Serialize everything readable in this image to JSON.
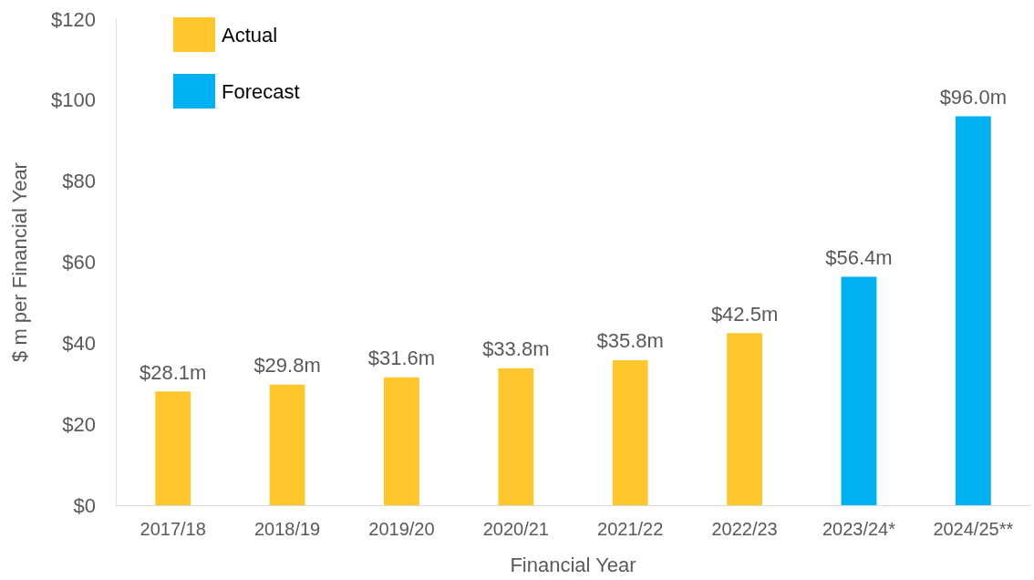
{
  "chart_data": {
    "type": "bar",
    "xlabel": "Financial Year",
    "ylabel": "$ m per Financial Year",
    "categories": [
      "2017/18",
      "2018/19",
      "2019/20",
      "2020/21",
      "2021/22",
      "2022/23",
      "2023/24*",
      "2024/25**"
    ],
    "series": [
      {
        "name": "Actual",
        "color": "#ffc72c",
        "values": [
          28.1,
          29.8,
          31.6,
          33.8,
          35.8,
          42.5,
          null,
          null
        ],
        "value_labels": [
          "$28.1m",
          "$29.8m",
          "$31.6m",
          "$33.8m",
          "$35.8m",
          "$42.5m",
          null,
          null
        ]
      },
      {
        "name": "Forecast",
        "color": "#00b0f0",
        "values": [
          null,
          null,
          null,
          null,
          null,
          null,
          56.4,
          96.0
        ],
        "value_labels": [
          null,
          null,
          null,
          null,
          null,
          null,
          "$56.4m",
          "$96.0m"
        ]
      }
    ],
    "ylim": [
      0,
      120
    ],
    "yticks": [
      {
        "value": 0,
        "label": "$0"
      },
      {
        "value": 20,
        "label": "$20"
      },
      {
        "value": 40,
        "label": "$40"
      },
      {
        "value": 60,
        "label": "$60"
      },
      {
        "value": 80,
        "label": "$80"
      },
      {
        "value": 100,
        "label": "$100"
      },
      {
        "value": 120,
        "label": "$120"
      }
    ],
    "grid": false,
    "legend": "top left"
  }
}
